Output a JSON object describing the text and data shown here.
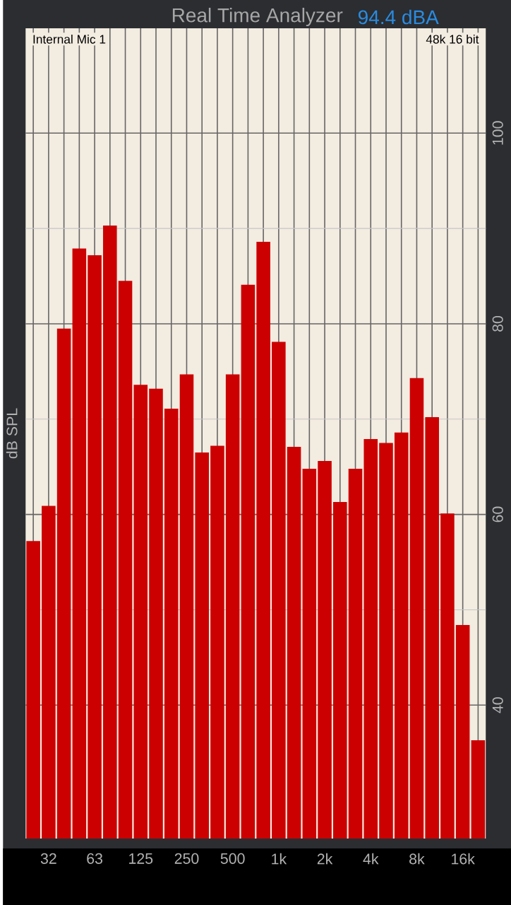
{
  "chart_data": {
    "type": "bar",
    "title": "Real Time Analyzer",
    "subtitle": "94.4 dBA",
    "ylabel": "dB SPL",
    "annotations": [
      "Internal Mic 1",
      "48k 16 bit"
    ],
    "categories": [
      null,
      "32",
      null,
      null,
      "63",
      null,
      null,
      "125",
      null,
      null,
      "250",
      null,
      null,
      "500",
      null,
      null,
      "1k",
      null,
      null,
      "2k",
      null,
      null,
      "4k",
      null,
      null,
      "8k",
      null,
      null,
      "16k",
      null
    ],
    "values": [
      57.2,
      60.9,
      79.5,
      87.9,
      87.2,
      90.3,
      84.5,
      73.6,
      73.2,
      71.1,
      74.7,
      66.5,
      67.2,
      74.7,
      84.1,
      88.6,
      78.1,
      67.1,
      64.8,
      65.6,
      61.3,
      64.8,
      67.9,
      67.5,
      68.6,
      74.3,
      70.2,
      60.1,
      48.4,
      36.3
    ],
    "color": "#cc0000",
    "ylim": [
      26,
      111
    ],
    "yticks": [
      40,
      60,
      80,
      100
    ],
    "grid": true
  }
}
